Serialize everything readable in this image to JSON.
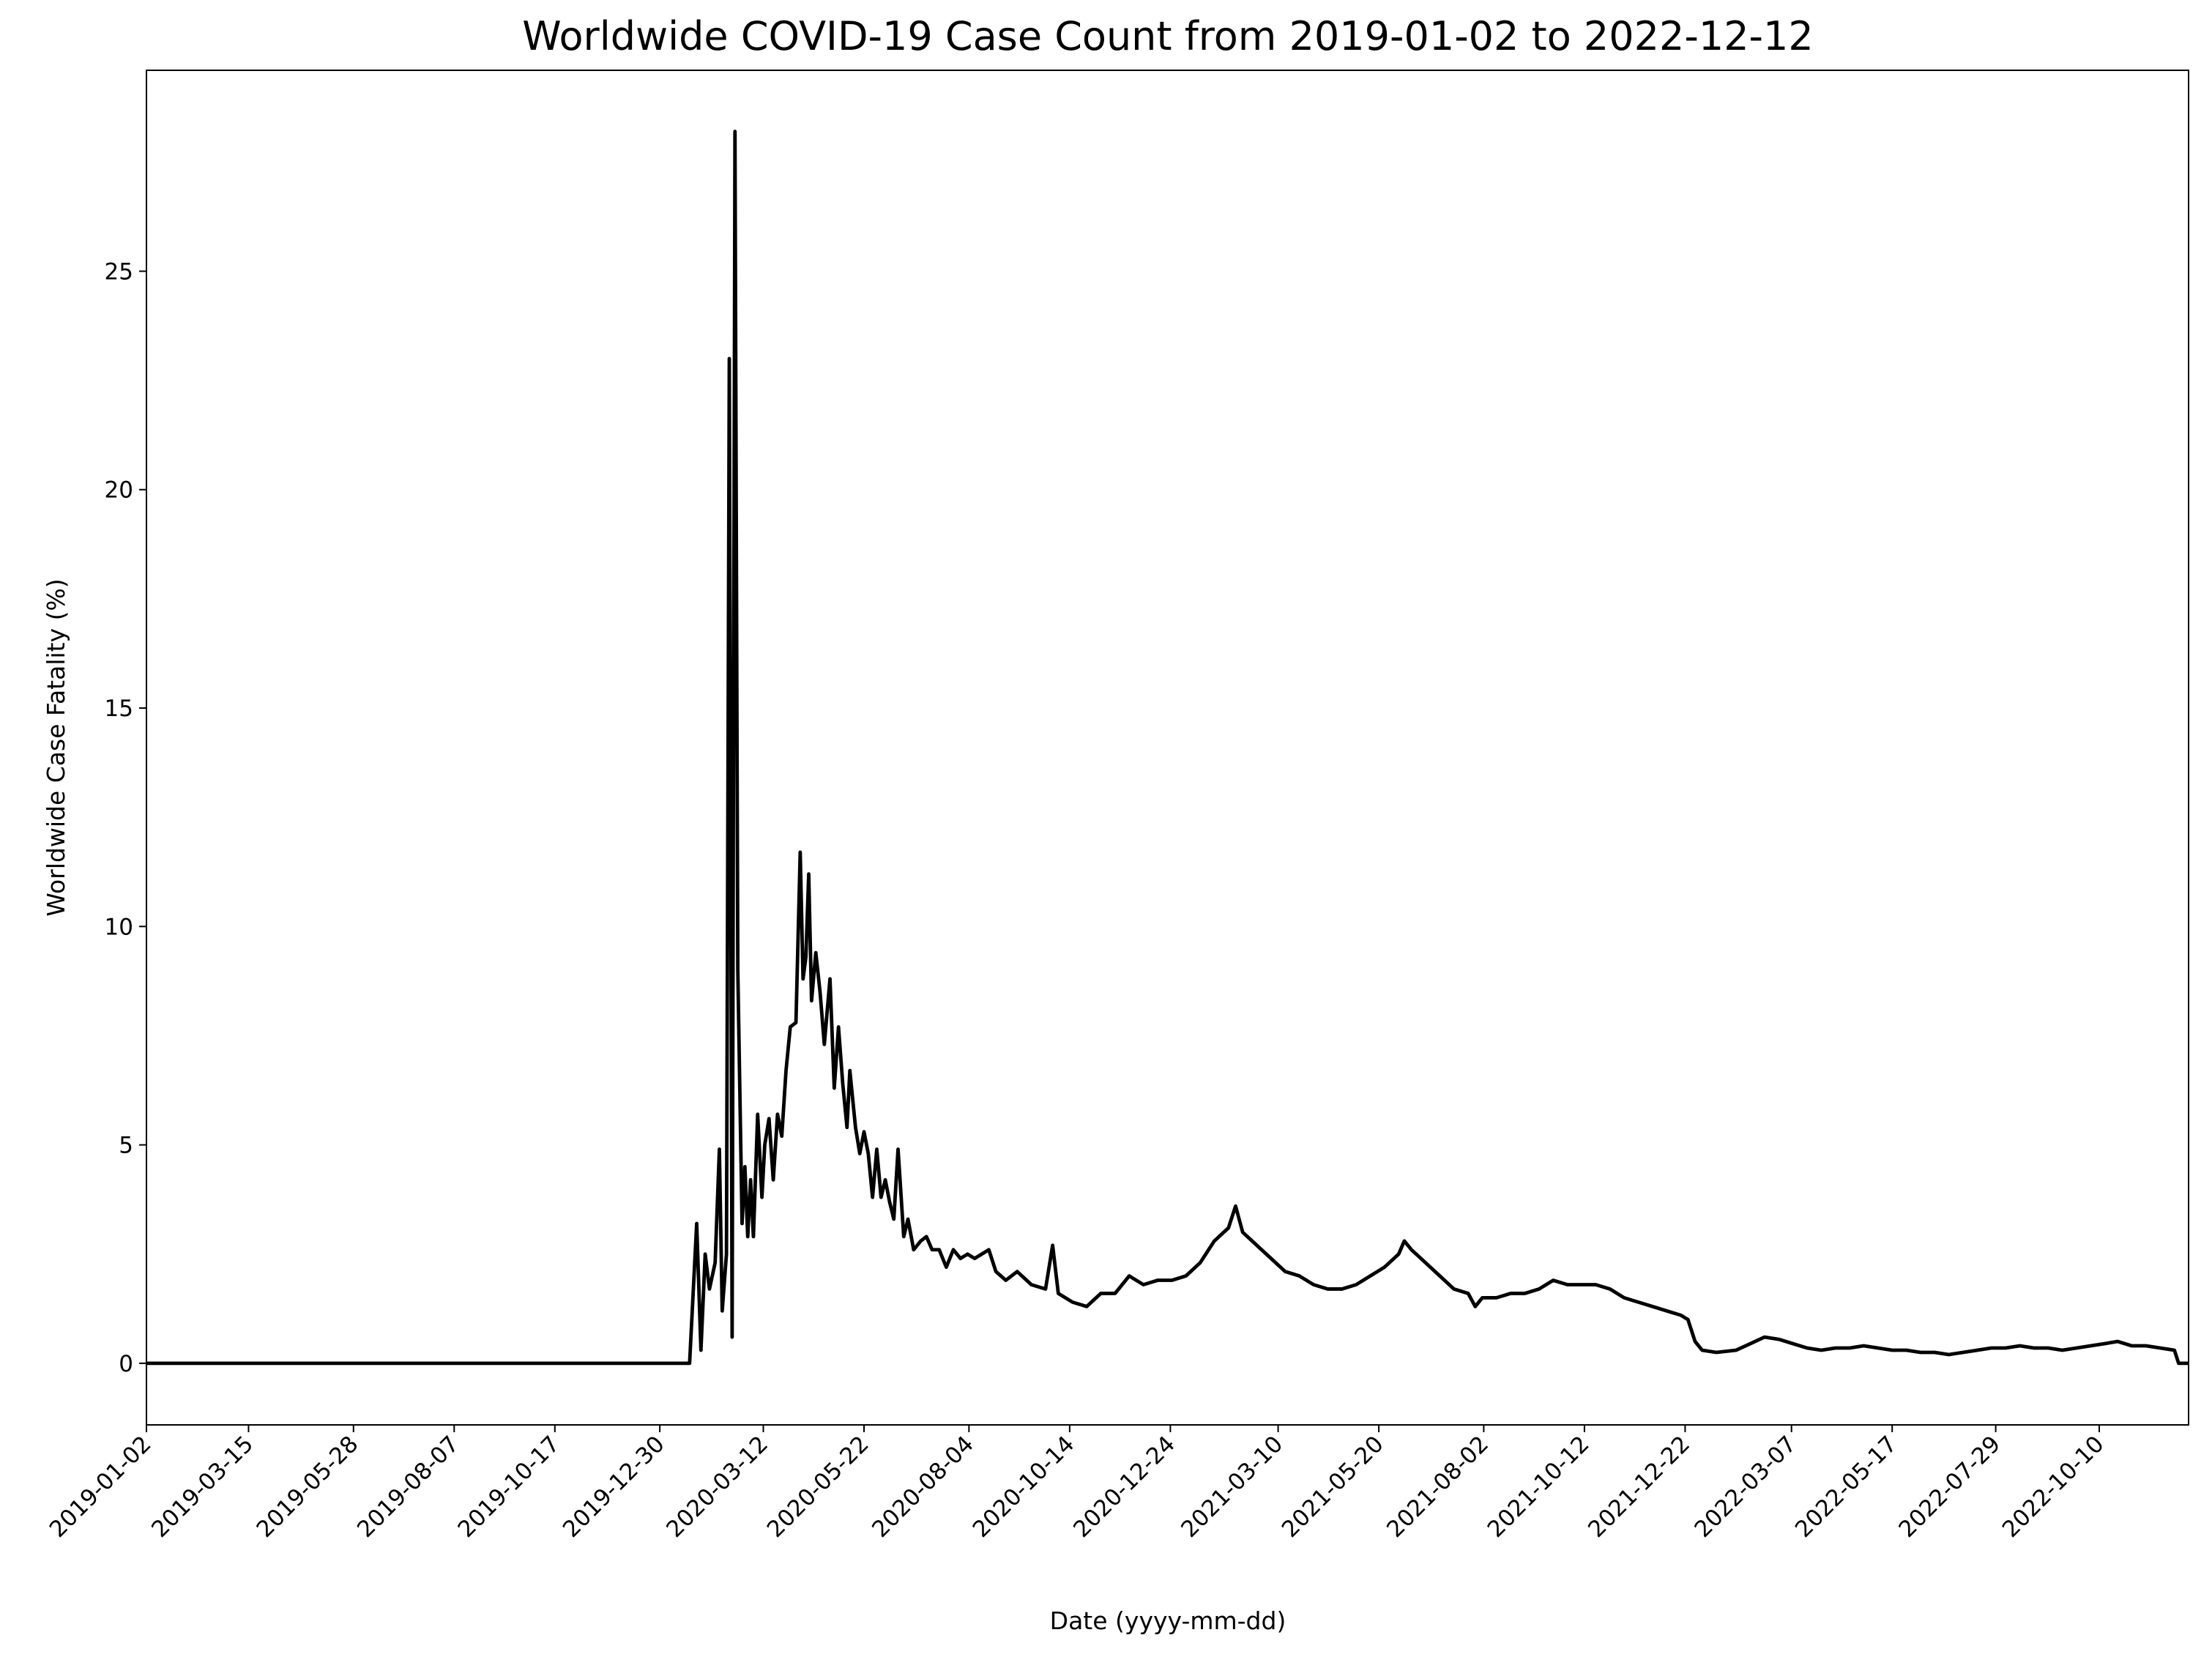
{
  "chart_data": {
    "type": "line",
    "title": "Worldwide COVID-19 Case Count from 2019-01-02 to 2022-12-12",
    "xlabel": "Date (yyyy-mm-dd)",
    "ylabel": "Worldwide Case Fatality (%)",
    "xlim": [
      "2019-01-02",
      "2022-12-12"
    ],
    "xticks": [
      "2019-01-02",
      "2019-03-15",
      "2019-05-28",
      "2019-08-07",
      "2019-10-17",
      "2019-12-30",
      "2020-03-12",
      "2020-05-22",
      "2020-08-04",
      "2020-10-14",
      "2020-12-24",
      "2021-03-10",
      "2021-05-20",
      "2021-08-02",
      "2021-10-12",
      "2021-12-22",
      "2022-03-07",
      "2022-05-17",
      "2022-07-29",
      "2022-10-10"
    ],
    "ylim": [
      -1.41,
      29.6
    ],
    "yticks": [
      0,
      5,
      10,
      15,
      20,
      25
    ],
    "series": [
      {
        "color": "#000000",
        "x": [
          "2019-01-02",
          "2020-01-20",
          "2020-01-25",
          "2020-01-28",
          "2020-01-31",
          "2020-02-03",
          "2020-02-07",
          "2020-02-10",
          "2020-02-12",
          "2020-02-15",
          "2020-02-17",
          "2020-02-19",
          "2020-02-21",
          "2020-02-23",
          "2020-02-26",
          "2020-02-28",
          "2020-03-01",
          "2020-03-03",
          "2020-03-05",
          "2020-03-08",
          "2020-03-11",
          "2020-03-13",
          "2020-03-16",
          "2020-03-19",
          "2020-03-22",
          "2020-03-25",
          "2020-03-28",
          "2020-03-31",
          "2020-04-04",
          "2020-04-07",
          "2020-04-09",
          "2020-04-11",
          "2020-04-13",
          "2020-04-15",
          "2020-04-18",
          "2020-04-21",
          "2020-04-24",
          "2020-04-28",
          "2020-05-01",
          "2020-05-04",
          "2020-05-07",
          "2020-05-10",
          "2020-05-12",
          "2020-05-16",
          "2020-05-19",
          "2020-05-22",
          "2020-05-25",
          "2020-05-28",
          "2020-05-31",
          "2020-06-03",
          "2020-06-06",
          "2020-06-09",
          "2020-06-12",
          "2020-06-15",
          "2020-06-19",
          "2020-06-22",
          "2020-06-26",
          "2020-07-01",
          "2020-07-05",
          "2020-07-09",
          "2020-07-14",
          "2020-07-19",
          "2020-07-24",
          "2020-07-29",
          "2020-08-03",
          "2020-08-08",
          "2020-08-18",
          "2020-08-23",
          "2020-08-30",
          "2020-09-07",
          "2020-09-17",
          "2020-09-27",
          "2020-10-02",
          "2020-10-06",
          "2020-10-16",
          "2020-10-26",
          "2020-11-05",
          "2020-11-15",
          "2020-11-25",
          "2020-12-05",
          "2020-12-15",
          "2020-12-25",
          "2021-01-04",
          "2021-01-14",
          "2021-01-24",
          "2021-02-03",
          "2021-02-08",
          "2021-02-13",
          "2021-02-23",
          "2021-03-05",
          "2021-03-15",
          "2021-03-25",
          "2021-04-04",
          "2021-04-14",
          "2021-04-24",
          "2021-05-04",
          "2021-05-14",
          "2021-05-24",
          "2021-06-03",
          "2021-06-07",
          "2021-06-12",
          "2021-06-22",
          "2021-07-02",
          "2021-07-12",
          "2021-07-22",
          "2021-07-27",
          "2021-08-01",
          "2021-08-11",
          "2021-08-21",
          "2021-08-31",
          "2021-09-10",
          "2021-09-20",
          "2021-09-30",
          "2021-10-10",
          "2021-10-20",
          "2021-10-30",
          "2021-11-09",
          "2021-11-19",
          "2021-11-29",
          "2021-12-09",
          "2021-12-19",
          "2021-12-24",
          "2021-12-29",
          "2022-01-03",
          "2022-01-13",
          "2022-01-27",
          "2022-02-06",
          "2022-02-16",
          "2022-02-26",
          "2022-03-08",
          "2022-03-18",
          "2022-03-28",
          "2022-04-07",
          "2022-04-17",
          "2022-04-27",
          "2022-05-07",
          "2022-05-17",
          "2022-05-27",
          "2022-06-06",
          "2022-06-16",
          "2022-06-26",
          "2022-07-06",
          "2022-07-16",
          "2022-07-26",
          "2022-08-05",
          "2022-08-15",
          "2022-08-25",
          "2022-09-04",
          "2022-09-14",
          "2022-09-24",
          "2022-10-04",
          "2022-10-14",
          "2022-10-23",
          "2022-11-02",
          "2022-11-12",
          "2022-11-22",
          "2022-12-02",
          "2022-12-05",
          "2022-12-12"
        ],
        "values": [
          0,
          0,
          3.2,
          0.3,
          2.5,
          1.7,
          2.3,
          4.9,
          1.2,
          2.5,
          23.0,
          0.6,
          28.2,
          9.0,
          3.2,
          4.5,
          2.9,
          4.2,
          2.9,
          5.7,
          3.8,
          5.0,
          5.6,
          4.2,
          5.7,
          5.2,
          6.7,
          7.7,
          7.8,
          11.7,
          8.8,
          9.3,
          11.2,
          8.3,
          9.4,
          8.5,
          7.3,
          8.8,
          6.3,
          7.7,
          6.4,
          5.4,
          6.7,
          5.4,
          4.8,
          5.3,
          4.8,
          3.8,
          4.9,
          3.8,
          4.2,
          3.7,
          3.3,
          4.9,
          2.9,
          3.3,
          2.6,
          2.8,
          2.9,
          2.6,
          2.6,
          2.2,
          2.6,
          2.4,
          2.5,
          2.4,
          2.6,
          2.1,
          1.9,
          2.1,
          1.8,
          1.7,
          2.7,
          1.6,
          1.4,
          1.3,
          1.6,
          1.6,
          2.0,
          1.8,
          1.9,
          1.9,
          2.0,
          2.3,
          2.8,
          3.1,
          3.6,
          3.0,
          2.7,
          2.4,
          2.1,
          2.0,
          1.8,
          1.7,
          1.7,
          1.8,
          2.0,
          2.2,
          2.5,
          2.8,
          2.6,
          2.3,
          2.0,
          1.7,
          1.6,
          1.3,
          1.5,
          1.5,
          1.6,
          1.6,
          1.7,
          1.9,
          1.8,
          1.8,
          1.8,
          1.7,
          1.5,
          1.4,
          1.3,
          1.2,
          1.1,
          1.0,
          0.5,
          0.3,
          0.25,
          0.3,
          0.45,
          0.6,
          0.55,
          0.45,
          0.35,
          0.3,
          0.35,
          0.35,
          0.4,
          0.35,
          0.3,
          0.3,
          0.25,
          0.25,
          0.2,
          0.25,
          0.3,
          0.35,
          0.35,
          0.4,
          0.35,
          0.35,
          0.3,
          0.35,
          0.4,
          0.45,
          0.5,
          0.4,
          0.4,
          0.35,
          0.3,
          0,
          0
        ]
      }
    ]
  }
}
